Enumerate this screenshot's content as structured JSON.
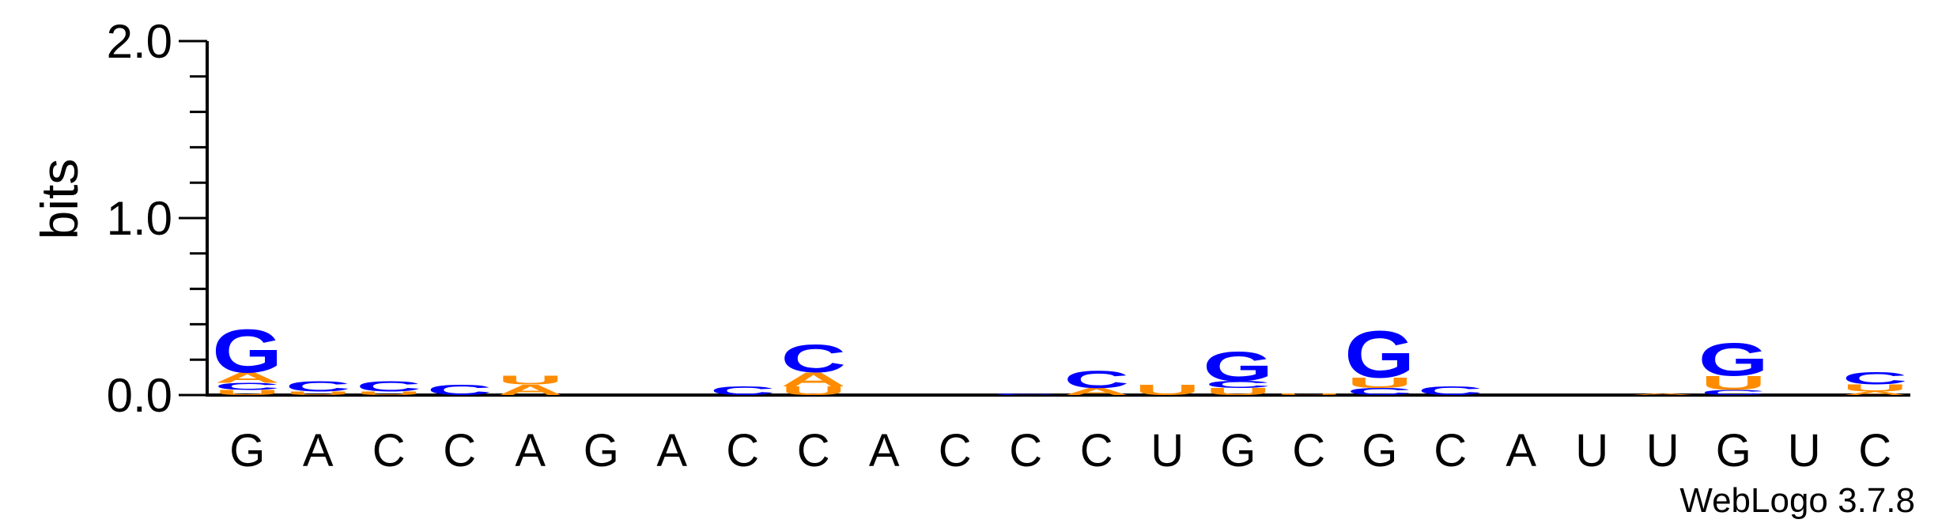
{
  "chart_data": {
    "type": "sequence-logo",
    "ylabel": "bits",
    "ylim": [
      0,
      2.0
    ],
    "yticks": [
      "0.0",
      "1.0",
      "2.0"
    ],
    "colors": {
      "G": "#0000ff",
      "C": "#0000ff",
      "A": "#ff8c00",
      "U": "#ff8c00"
    },
    "positions": [
      {
        "label": "G",
        "stack": [
          {
            "letter": "U",
            "height": 0.03
          },
          {
            "letter": "C",
            "height": 0.04
          },
          {
            "letter": "A",
            "height": 0.06
          },
          {
            "letter": "G",
            "height": 0.25
          }
        ]
      },
      {
        "label": "A",
        "stack": [
          {
            "letter": "U",
            "height": 0.02
          },
          {
            "letter": "C",
            "height": 0.06
          }
        ]
      },
      {
        "label": "C",
        "stack": [
          {
            "letter": "U",
            "height": 0.02
          },
          {
            "letter": "C",
            "height": 0.06
          }
        ]
      },
      {
        "label": "C",
        "stack": [
          {
            "letter": "C",
            "height": 0.06
          }
        ]
      },
      {
        "label": "A",
        "stack": [
          {
            "letter": "A",
            "height": 0.06
          },
          {
            "letter": "U",
            "height": 0.05
          }
        ]
      },
      {
        "label": "G",
        "stack": []
      },
      {
        "label": "A",
        "stack": []
      },
      {
        "label": "C",
        "stack": [
          {
            "letter": "C",
            "height": 0.05
          }
        ]
      },
      {
        "label": "C",
        "stack": [
          {
            "letter": "U",
            "height": 0.05
          },
          {
            "letter": "A",
            "height": 0.08
          },
          {
            "letter": "C",
            "height": 0.16
          }
        ]
      },
      {
        "label": "A",
        "stack": []
      },
      {
        "label": "C",
        "stack": []
      },
      {
        "label": "C",
        "stack": [
          {
            "letter": "C",
            "height": 0.01
          }
        ]
      },
      {
        "label": "C",
        "stack": [
          {
            "letter": "A",
            "height": 0.04
          },
          {
            "letter": "C",
            "height": 0.1
          }
        ]
      },
      {
        "label": "U",
        "stack": [
          {
            "letter": "U",
            "height": 0.06
          }
        ]
      },
      {
        "label": "G",
        "stack": [
          {
            "letter": "U",
            "height": 0.04
          },
          {
            "letter": "C",
            "height": 0.04
          },
          {
            "letter": "G",
            "height": 0.17
          }
        ]
      },
      {
        "label": "C",
        "stack": [
          {
            "letter": "U",
            "height": 0.01
          }
        ]
      },
      {
        "label": "G",
        "stack": [
          {
            "letter": "C",
            "height": 0.04
          },
          {
            "letter": "U",
            "height": 0.06
          },
          {
            "letter": "G",
            "height": 0.27
          }
        ]
      },
      {
        "label": "C",
        "stack": [
          {
            "letter": "C",
            "height": 0.05
          }
        ]
      },
      {
        "label": "A",
        "stack": []
      },
      {
        "label": "U",
        "stack": []
      },
      {
        "label": "U",
        "stack": [
          {
            "letter": "A",
            "height": 0.01
          }
        ]
      },
      {
        "label": "G",
        "stack": [
          {
            "letter": "C",
            "height": 0.03
          },
          {
            "letter": "U",
            "height": 0.08
          },
          {
            "letter": "G",
            "height": 0.19
          }
        ]
      },
      {
        "label": "U",
        "stack": []
      },
      {
        "label": "C",
        "stack": [
          {
            "letter": "A",
            "height": 0.02
          },
          {
            "letter": "U",
            "height": 0.04
          },
          {
            "letter": "C",
            "height": 0.07
          }
        ]
      }
    ]
  },
  "footer": {
    "credit": "WebLogo 3.7.8"
  }
}
